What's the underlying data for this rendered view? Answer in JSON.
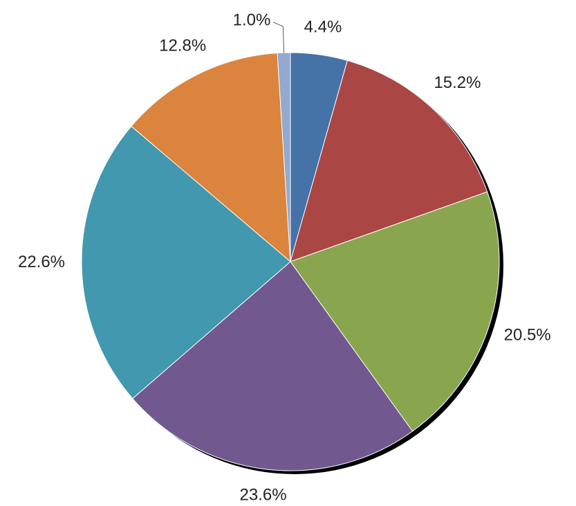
{
  "chart_data": {
    "type": "pie",
    "values": [
      4.4,
      15.2,
      20.5,
      23.6,
      22.6,
      12.8,
      1.0
    ],
    "value_labels": [
      "4.4%",
      "15.2%",
      "20.5%",
      "23.6%",
      "22.6%",
      "12.8%",
      "1.0%"
    ],
    "colors": [
      "#4572a7",
      "#aa4643",
      "#89a54e",
      "#71588f",
      "#4198af",
      "#db843d",
      "#93a9cf"
    ]
  }
}
